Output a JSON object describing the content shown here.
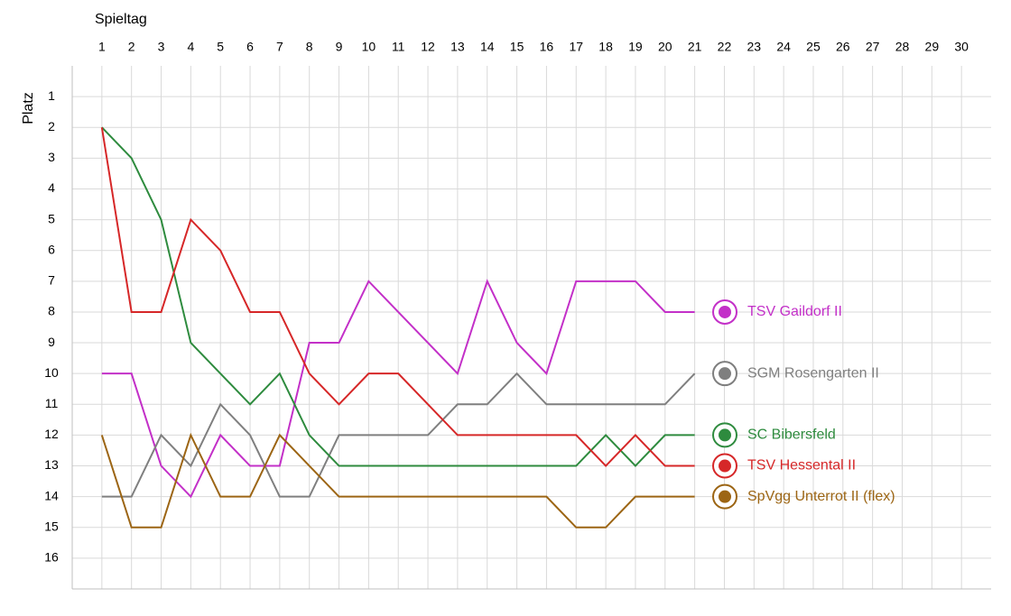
{
  "chart_data": {
    "type": "line",
    "x_label": "Spieltag",
    "y_label": "Platz",
    "x": [
      1,
      2,
      3,
      4,
      5,
      6,
      7,
      8,
      9,
      10,
      11,
      12,
      13,
      14,
      15,
      16,
      17,
      18,
      19,
      20,
      21
    ],
    "xlim": [
      0,
      31
    ],
    "xticks": [
      1,
      2,
      3,
      4,
      5,
      6,
      7,
      8,
      9,
      10,
      11,
      12,
      13,
      14,
      15,
      16,
      17,
      18,
      19,
      20,
      21,
      22,
      23,
      24,
      25,
      26,
      27,
      28,
      29,
      30
    ],
    "ylim": [
      17,
      0
    ],
    "yticks": [
      1,
      2,
      3,
      4,
      5,
      6,
      7,
      8,
      9,
      10,
      11,
      12,
      13,
      14,
      15,
      16
    ],
    "grid": true,
    "series": [
      {
        "name": "TSV Gaildorf II",
        "color": "#c330c8",
        "values": [
          10,
          10,
          13,
          14,
          12,
          13,
          13,
          9,
          9,
          7,
          8,
          9,
          10,
          7,
          9,
          10,
          7,
          7,
          7,
          8,
          8
        ]
      },
      {
        "name": "SGM Rosengarten II",
        "color": "#7f7f7f",
        "values": [
          14,
          14,
          12,
          13,
          11,
          12,
          14,
          14,
          12,
          12,
          12,
          12,
          11,
          11,
          10,
          11,
          11,
          11,
          11,
          11,
          10
        ]
      },
      {
        "name": "SC Bibersfeld",
        "color": "#2e8b3e",
        "values": [
          2,
          3,
          5,
          9,
          10,
          11,
          10,
          12,
          13,
          13,
          13,
          13,
          13,
          13,
          13,
          13,
          13,
          12,
          13,
          12,
          12
        ]
      },
      {
        "name": "TSV Hessental II",
        "color": "#d62728",
        "values": [
          2,
          8,
          8,
          5,
          6,
          8,
          8,
          10,
          11,
          10,
          10,
          11,
          12,
          12,
          12,
          12,
          12,
          13,
          12,
          13,
          13
        ]
      },
      {
        "name": "SpVgg Unterrot II (flex)",
        "color": "#9c6514",
        "values": [
          12,
          15,
          15,
          12,
          14,
          14,
          12,
          13,
          14,
          14,
          14,
          14,
          14,
          14,
          14,
          14,
          15,
          15,
          14,
          14,
          14
        ]
      }
    ]
  }
}
